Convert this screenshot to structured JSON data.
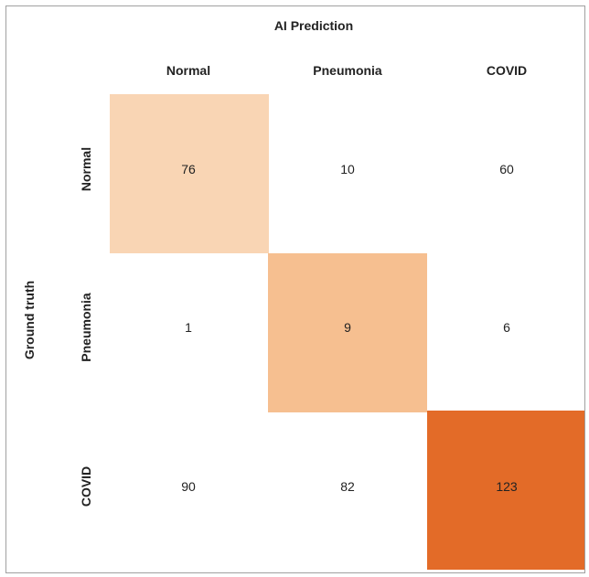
{
  "chart_data": {
    "type": "heatmap",
    "title": "AI Prediction",
    "ylabel": "Ground truth",
    "x_categories": [
      "Normal",
      "Pneumonia",
      "COVID"
    ],
    "y_categories": [
      "Normal",
      "Pneumonia",
      "COVID"
    ],
    "values": [
      [
        76,
        10,
        60
      ],
      [
        1,
        9,
        6
      ],
      [
        90,
        82,
        123
      ]
    ],
    "highlight_colors": [
      "#f9d5b4",
      "#f6bf90",
      "#e36b28"
    ]
  }
}
